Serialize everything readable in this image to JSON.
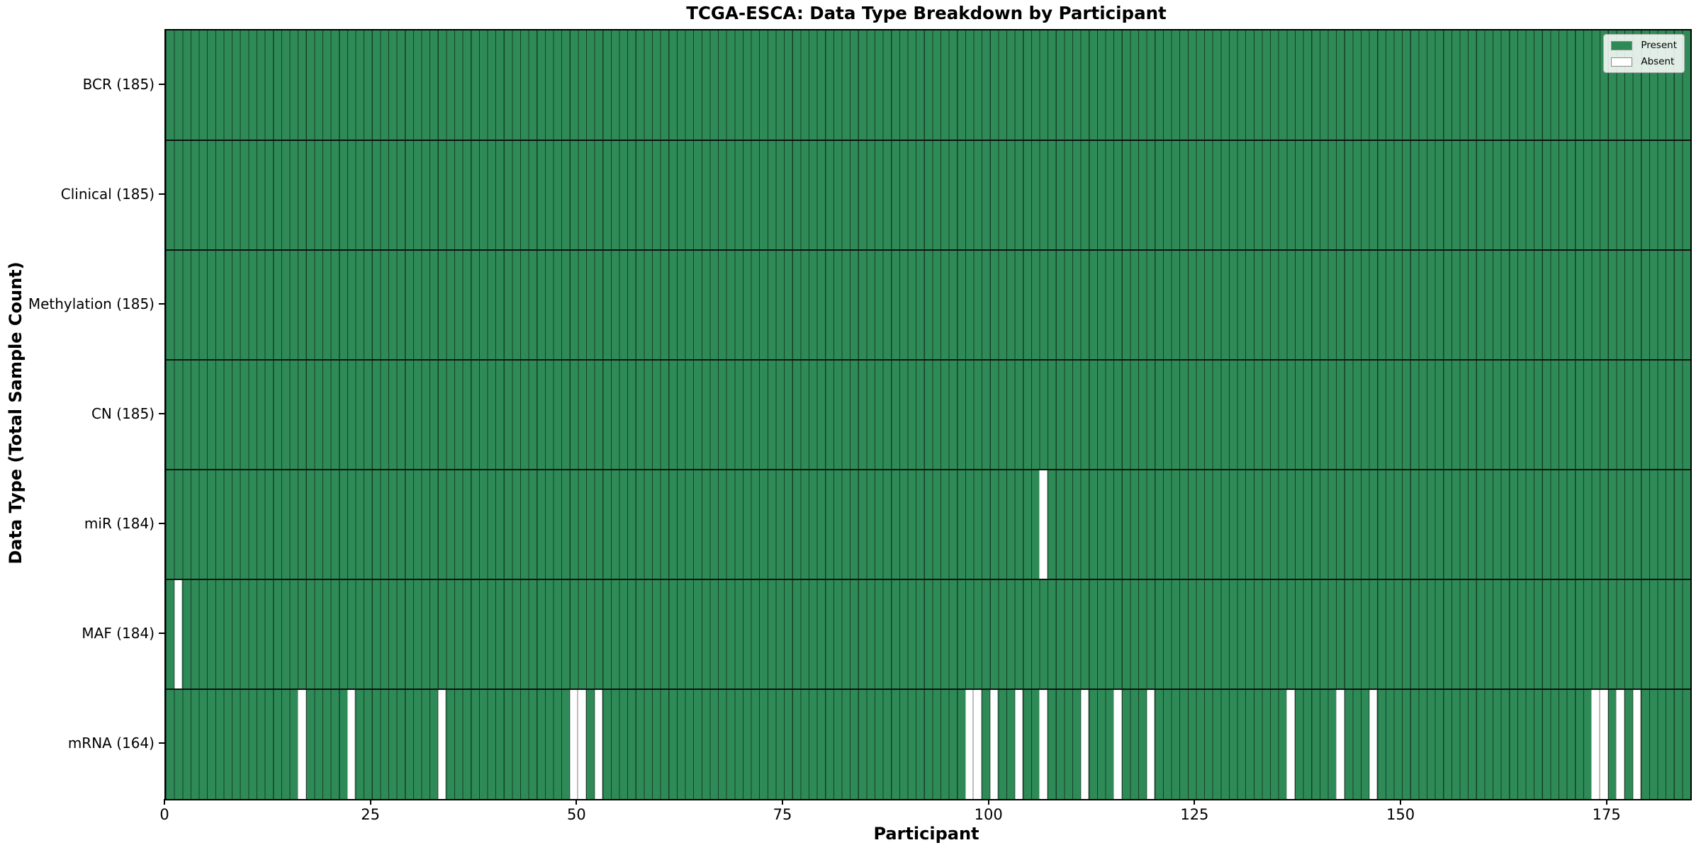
{
  "title": "TCGA-ESCA: Data Type Breakdown by Participant",
  "x_axis": {
    "label": "Participant",
    "ticks": [
      0,
      25,
      50,
      75,
      100,
      125,
      150,
      175
    ],
    "range": [
      0,
      185
    ]
  },
  "y_axis": {
    "label": "Data Type (Total Sample Count)"
  },
  "legend": {
    "items": [
      {
        "label": "Present",
        "color": "#2e8b57"
      },
      {
        "label": "Absent",
        "color": "#ffffff"
      }
    ]
  },
  "colors": {
    "present": "#2e8b57",
    "absent": "#ffffff",
    "cell_edge": "rgba(0,0,0,0.55)"
  },
  "chart_data": {
    "type": "heatmap",
    "title": "TCGA-ESCA: Data Type Breakdown by Participant",
    "xlabel": "Participant",
    "ylabel": "Data Type (Total Sample Count)",
    "xlim": [
      0,
      185
    ],
    "x_ticks": [
      0,
      25,
      50,
      75,
      100,
      125,
      150,
      175
    ],
    "n_participants": 185,
    "legend_position": "upper right",
    "cell_values": {
      "present": 1,
      "absent": 0
    },
    "rows": [
      {
        "label": "BCR (185)",
        "data_type": "BCR",
        "present_count": 185,
        "absent_participants": []
      },
      {
        "label": "Clinical (185)",
        "data_type": "Clinical",
        "present_count": 185,
        "absent_participants": []
      },
      {
        "label": "Methylation (185)",
        "data_type": "Methylation",
        "present_count": 185,
        "absent_participants": []
      },
      {
        "label": "CN (185)",
        "data_type": "CN",
        "present_count": 185,
        "absent_participants": []
      },
      {
        "label": "miR (184)",
        "data_type": "miR",
        "present_count": 184,
        "absent_participants": [
          106
        ]
      },
      {
        "label": "MAF (184)",
        "data_type": "MAF",
        "present_count": 184,
        "absent_participants": [
          1
        ]
      },
      {
        "label": "mRNA (164)",
        "data_type": "mRNA",
        "present_count": 164,
        "absent_participants": [
          16,
          22,
          33,
          49,
          50,
          52,
          97,
          98,
          100,
          103,
          106,
          111,
          115,
          119,
          136,
          142,
          146,
          173,
          174,
          176,
          178
        ]
      }
    ]
  }
}
